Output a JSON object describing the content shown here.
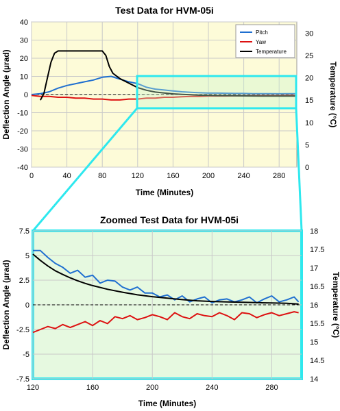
{
  "chart_data": [
    {
      "type": "line",
      "title": "Test Data for HVM-05i",
      "xlabel": "Time (Minutes)",
      "ylabel": "Deflection Angle (µrad)",
      "y2label": "Temperature (°C)",
      "xlim": [
        0,
        300
      ],
      "ylim": [
        -40,
        40
      ],
      "y2lim": [
        0,
        32.5
      ],
      "x_ticks": [
        0,
        40,
        80,
        120,
        160,
        200,
        240,
        280
      ],
      "y_ticks": [
        -40,
        -30,
        -20,
        -10,
        0,
        10,
        20,
        30,
        40
      ],
      "y2_ticks": [
        0,
        5,
        10,
        15,
        20,
        25,
        30
      ],
      "grid": true,
      "background": "#fdfbd8",
      "legend_position": "top-right",
      "series": [
        {
          "name": "Pitch",
          "axis": "left",
          "color": "#1f6fd0",
          "x": [
            0,
            10,
            20,
            30,
            40,
            50,
            60,
            70,
            80,
            90,
            100,
            110,
            120,
            130,
            140,
            150,
            160,
            170,
            180,
            190,
            200,
            210,
            220,
            230,
            240,
            250,
            260,
            270,
            280,
            290,
            298
          ],
          "y": [
            0,
            0.5,
            1.5,
            3.5,
            5,
            6,
            7,
            8,
            9.5,
            10,
            8.5,
            7,
            6,
            4,
            3,
            2.5,
            2,
            1.5,
            1.2,
            1,
            0.8,
            0.8,
            0.7,
            0.6,
            0.6,
            0.5,
            0.5,
            0.5,
            0.4,
            0.5,
            0.5
          ]
        },
        {
          "name": "Yaw",
          "axis": "left",
          "color": "#dd1111",
          "x": [
            0,
            10,
            20,
            30,
            40,
            50,
            60,
            70,
            80,
            90,
            100,
            110,
            120,
            130,
            140,
            150,
            160,
            170,
            180,
            190,
            200,
            210,
            220,
            230,
            240,
            250,
            260,
            270,
            280,
            290,
            298
          ],
          "y": [
            -0.5,
            -1,
            -1,
            -1.5,
            -1.5,
            -2,
            -2,
            -2.5,
            -2.5,
            -3,
            -3,
            -2.5,
            -2.5,
            -2,
            -2,
            -1.5,
            -1.5,
            -1.2,
            -1,
            -1,
            -0.8,
            -0.8,
            -0.8,
            -0.7,
            -0.7,
            -0.6,
            -0.6,
            -0.6,
            -0.6,
            -0.5,
            -0.5
          ]
        },
        {
          "name": "Temperature",
          "axis": "right",
          "color": "#000000",
          "x": [
            10,
            14,
            18,
            22,
            26,
            30,
            40,
            50,
            60,
            70,
            80,
            84,
            88,
            92,
            100,
            110,
            120,
            130,
            140,
            150,
            160,
            170,
            180,
            190,
            200,
            210,
            220,
            240,
            260,
            280,
            298
          ],
          "y": [
            15,
            16.5,
            20,
            23.5,
            25.5,
            26,
            26,
            26,
            26,
            26,
            26,
            25,
            22.5,
            21,
            19.8,
            18.8,
            17.8,
            17.2,
            16.8,
            16.6,
            16.4,
            16.3,
            16.2,
            16.1,
            16.05,
            16,
            16,
            15.95,
            15.9,
            15.9,
            15.9
          ]
        }
      ]
    },
    {
      "type": "line",
      "title": "Zoomed Test Data for HVM-05i",
      "xlabel": "Time (Minutes)",
      "ylabel": "Deflection Angle (µrad)",
      "y2label": "Temperature (°C)",
      "xlim": [
        120,
        300
      ],
      "ylim": [
        -7.5,
        7.5
      ],
      "y2lim": [
        14,
        18
      ],
      "x_ticks": [
        120,
        160,
        200,
        240,
        280
      ],
      "y_ticks": [
        -7.5,
        -5,
        -2.5,
        0,
        2.5,
        5,
        7.5
      ],
      "y2_ticks": [
        14,
        14.5,
        15,
        15.5,
        16,
        16.5,
        17,
        17.5,
        18
      ],
      "grid": true,
      "background": "#e6f9e0",
      "series": [
        {
          "name": "Pitch",
          "axis": "left",
          "color": "#1f6fd0",
          "x": [
            120,
            125,
            130,
            135,
            140,
            145,
            150,
            155,
            160,
            165,
            170,
            175,
            180,
            185,
            190,
            195,
            200,
            205,
            210,
            215,
            220,
            225,
            230,
            235,
            240,
            245,
            250,
            255,
            260,
            265,
            270,
            275,
            280,
            285,
            290,
            295,
            298
          ],
          "y": [
            5.5,
            5.5,
            4.8,
            4.2,
            3.8,
            3.2,
            3.5,
            2.8,
            3,
            2.2,
            2.5,
            2.4,
            1.8,
            1.5,
            1.8,
            1.2,
            1.2,
            0.8,
            1,
            0.5,
            0.9,
            0.3,
            0.6,
            0.8,
            0.2,
            0.5,
            0.6,
            0.3,
            0.5,
            0.8,
            0.2,
            0.6,
            0.9,
            0.3,
            0.5,
            0.8,
            0.3
          ]
        },
        {
          "name": "Yaw",
          "axis": "left",
          "color": "#dd1111",
          "x": [
            120,
            125,
            130,
            135,
            140,
            145,
            150,
            155,
            160,
            165,
            170,
            175,
            180,
            185,
            190,
            195,
            200,
            205,
            210,
            215,
            220,
            225,
            230,
            235,
            240,
            245,
            250,
            255,
            260,
            265,
            270,
            275,
            280,
            285,
            290,
            295,
            298
          ],
          "y": [
            -2.8,
            -2.5,
            -2.2,
            -2.4,
            -2,
            -2.3,
            -2,
            -1.7,
            -2.1,
            -1.6,
            -1.9,
            -1.2,
            -1.4,
            -1.1,
            -1.5,
            -1.3,
            -1,
            -1.2,
            -1.5,
            -0.8,
            -1.2,
            -1.4,
            -0.9,
            -1.1,
            -1.2,
            -0.8,
            -1.1,
            -1.5,
            -0.8,
            -0.9,
            -1.3,
            -1,
            -0.8,
            -1.1,
            -0.9,
            -0.7,
            -0.8
          ]
        },
        {
          "name": "Temperature",
          "axis": "right",
          "color": "#000000",
          "x": [
            120,
            125,
            130,
            135,
            140,
            145,
            150,
            155,
            160,
            170,
            180,
            190,
            200,
            210,
            220,
            230,
            240,
            250,
            260,
            270,
            280,
            290,
            298
          ],
          "y": [
            17.37,
            17.2,
            17.05,
            16.92,
            16.82,
            16.73,
            16.65,
            16.58,
            16.52,
            16.42,
            16.34,
            16.27,
            16.22,
            16.18,
            16.14,
            16.11,
            16.09,
            16.08,
            16.07,
            16.06,
            16.05,
            16.04,
            16.02
          ]
        }
      ]
    }
  ],
  "legend": [
    "Pitch",
    "Yaw",
    "Temperature"
  ],
  "colors": {
    "zoom_box": "#2ee8ee",
    "top_background": "#fdfbd8",
    "bottom_background": "#e6f9e0"
  }
}
